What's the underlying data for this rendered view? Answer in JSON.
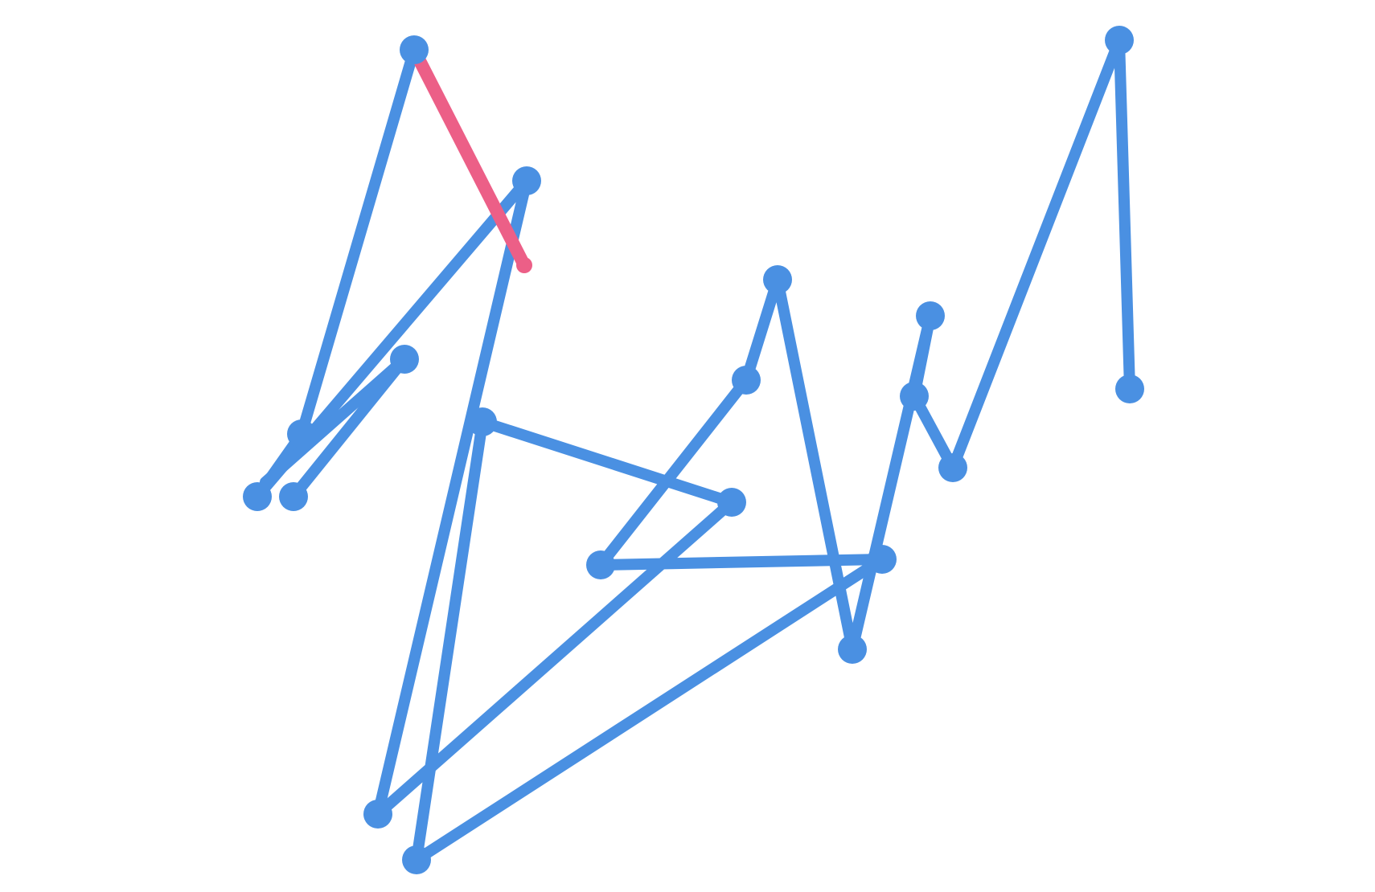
{
  "game": {
    "path_color": "#4a90e2",
    "highlight_color": "#ec5f87",
    "nodes": [
      {
        "id": "n1",
        "label": ""
      },
      {
        "id": "n2",
        "label": ""
      },
      {
        "id": "n3",
        "label": ""
      },
      {
        "id": "n4",
        "label": ""
      },
      {
        "id": "n5",
        "label": ""
      },
      {
        "id": "n6",
        "label": ""
      },
      {
        "id": "n7",
        "label": ""
      },
      {
        "id": "n8",
        "label": ""
      },
      {
        "id": "n9",
        "label": ""
      },
      {
        "id": "n10",
        "label": ""
      },
      {
        "id": "n11",
        "label": ""
      },
      {
        "id": "n12",
        "label": ""
      },
      {
        "id": "n13",
        "label": ""
      },
      {
        "id": "n14",
        "label": ""
      },
      {
        "id": "n15",
        "label": ""
      },
      {
        "id": "n16",
        "label": ""
      },
      {
        "id": "n17",
        "label": ""
      },
      {
        "id": "n18",
        "label": ""
      },
      {
        "id": "n19",
        "label": ""
      },
      {
        "id": "n20",
        "label": ""
      },
      {
        "id": "n21",
        "label": ""
      }
    ],
    "highlighted_segment": {
      "from": "n1",
      "to": "endpoint"
    }
  }
}
